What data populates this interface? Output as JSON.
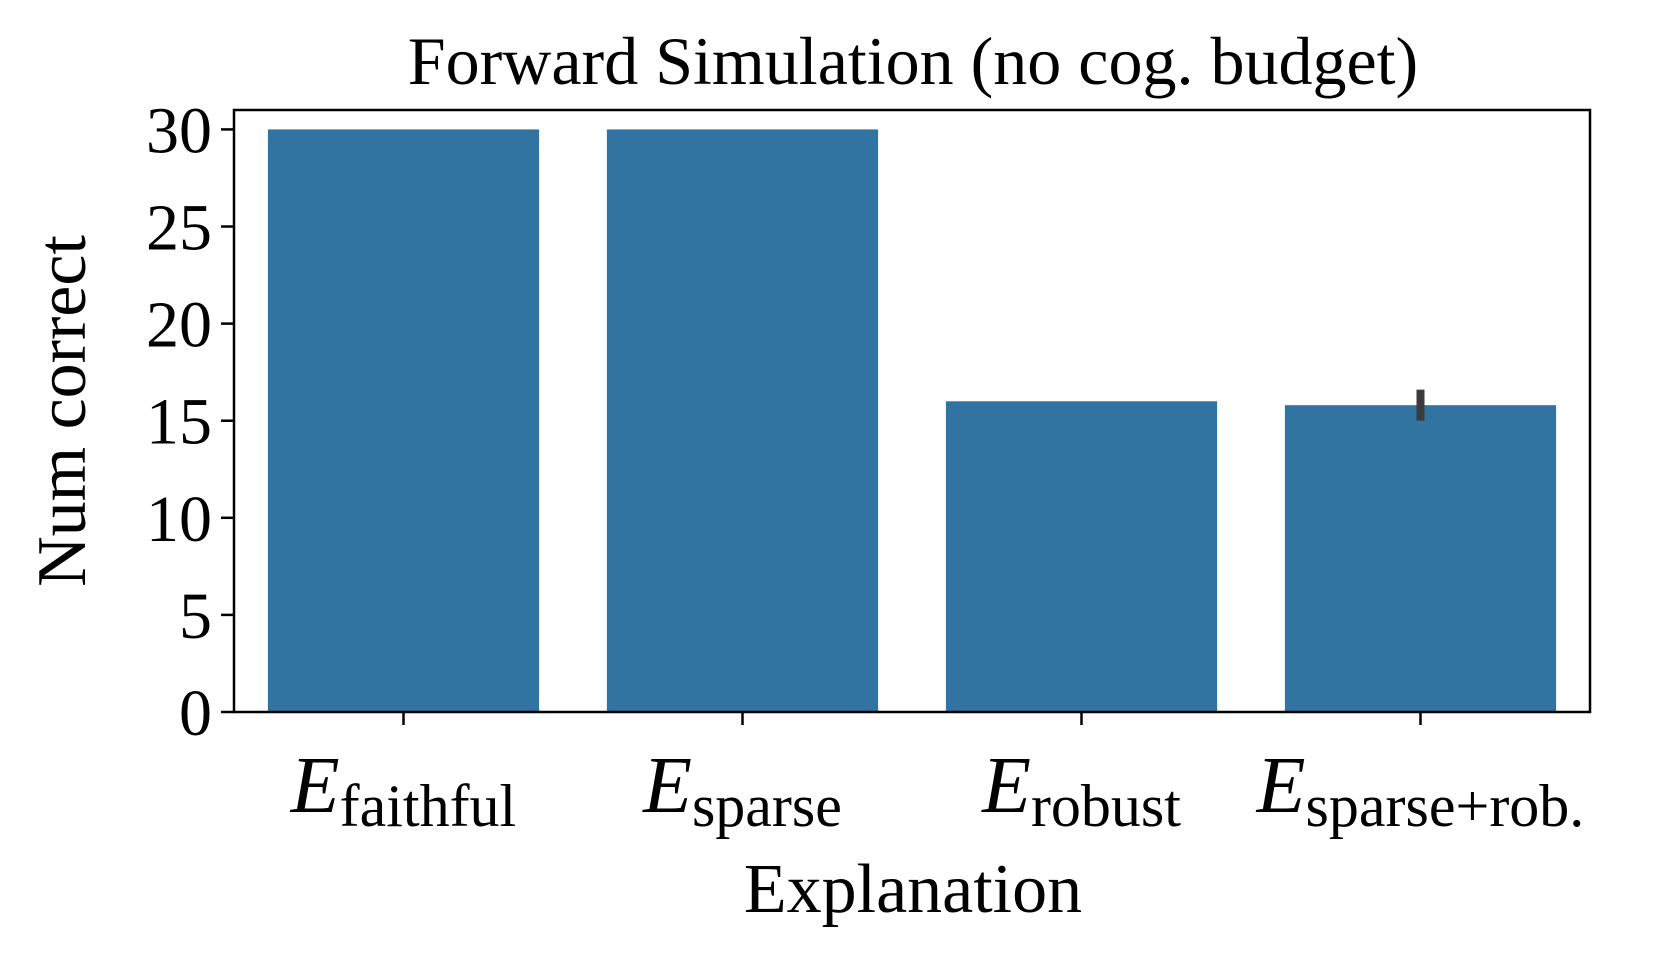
{
  "chart_data": {
    "type": "bar",
    "title": "Forward Simulation (no cog. budget)",
    "xlabel": "Explanation",
    "ylabel": "Num correct",
    "categories": [
      {
        "symbol": "E",
        "subscript": "faithful"
      },
      {
        "symbol": "E",
        "subscript": "sparse"
      },
      {
        "symbol": "E",
        "subscript": "robust"
      },
      {
        "symbol": "E",
        "subscript": "sparse+rob."
      }
    ],
    "values": [
      30,
      30,
      16,
      15.8
    ],
    "error_bars": [
      null,
      null,
      null,
      [
        15,
        16.6
      ]
    ],
    "ylim": [
      0,
      31
    ],
    "yticks": [
      0,
      5,
      10,
      15,
      20,
      25,
      30
    ],
    "bar_color": "#3274a1",
    "error_color": "#3b3b3b",
    "grid": false,
    "legend": "none"
  }
}
